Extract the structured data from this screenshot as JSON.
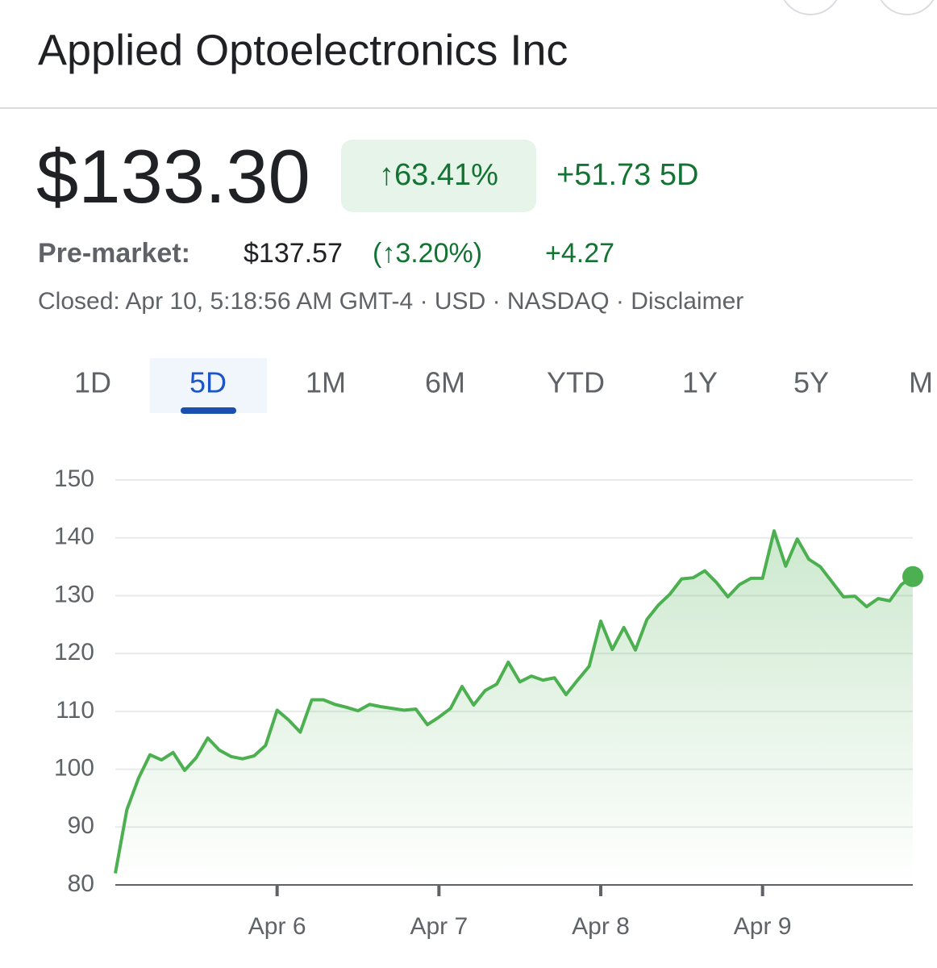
{
  "header": {
    "title": "Applied Optoelectronics Inc",
    "price": "$133.30",
    "change_pct": "↑63.41%",
    "change_abs": "+51.73 5D",
    "premarket_label": "Pre-market:",
    "premarket_price": "$137.57",
    "premarket_pct": "(↑3.20%)",
    "premarket_abs": "+4.27",
    "status": "Closed: Apr 10, 5:18:56 AM GMT-4 · USD · NASDAQ · Disclaimer"
  },
  "tabs": [
    "1D",
    "5D",
    "1M",
    "6M",
    "YTD",
    "1Y",
    "5Y",
    "M"
  ],
  "chart_data": {
    "type": "line",
    "x": [
      0,
      1,
      2,
      3,
      4,
      5,
      6,
      7,
      8,
      9,
      10,
      11,
      12,
      13,
      14,
      15,
      16,
      17,
      18,
      19,
      20,
      21,
      22,
      23,
      24,
      25,
      26,
      27,
      28,
      29,
      30,
      31,
      32,
      33,
      34,
      35,
      36,
      37,
      38,
      39,
      40,
      41,
      42,
      43,
      44,
      45,
      46,
      47,
      48,
      49,
      50,
      51,
      52,
      53,
      54,
      55,
      56,
      57,
      58,
      59,
      60,
      61,
      62,
      63,
      64,
      65,
      66,
      67,
      68,
      69
    ],
    "series": [
      {
        "color": "#4caf50",
        "values": [
          82,
          93,
          98.4,
          102.5,
          101.6,
          102.9,
          99.8,
          102,
          105.4,
          103.3,
          102.2,
          101.8,
          102.3,
          104.1,
          110.2,
          108.5,
          106.4,
          112,
          112,
          111.2,
          110.7,
          110.1,
          111.2,
          110.8,
          110.5,
          110.2,
          110.4,
          107.7,
          109,
          110.5,
          114.3,
          111.1,
          113.6,
          114.7,
          118.5,
          115.1,
          116.1,
          115.4,
          115.8,
          112.9,
          115.4,
          117.8,
          125.6,
          120.7,
          124.5,
          120.6,
          125.9,
          128.4,
          130.3,
          132.9,
          133.1,
          134.3,
          132.3,
          129.8,
          131.9,
          133,
          133,
          141.2,
          135.1,
          139.8,
          136.3,
          135,
          132.4,
          129.8,
          129.9,
          128.1,
          129.5,
          129.1,
          131.9,
          133.3
        ]
      }
    ],
    "xlim": [
      0,
      69
    ],
    "xticks": [
      {
        "value": 14,
        "label": "Apr 6"
      },
      {
        "value": 28,
        "label": "Apr 7"
      },
      {
        "value": 42,
        "label": "Apr 8"
      },
      {
        "value": 56,
        "label": "Apr 9"
      }
    ],
    "ylim": [
      80,
      150
    ],
    "yticks": [
      80,
      90,
      100,
      110,
      120,
      130,
      140,
      150
    ],
    "grid": true
  }
}
